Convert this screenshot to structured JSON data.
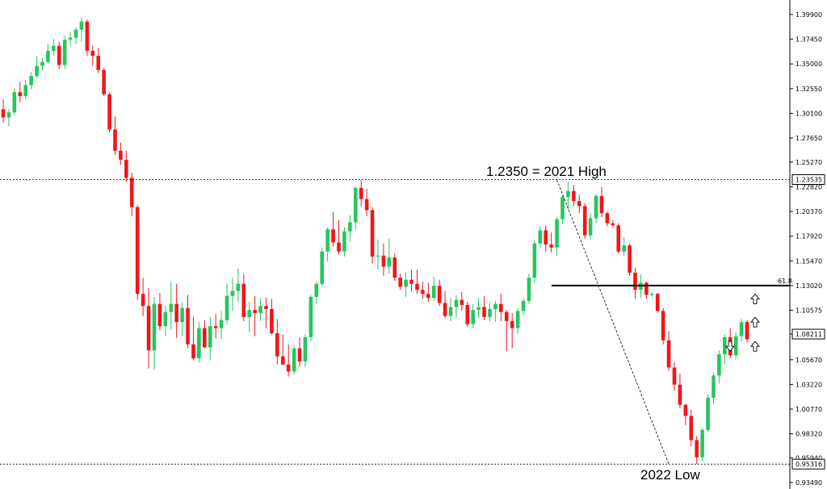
{
  "chart_data": {
    "type": "candlestick",
    "y_ticks": [
      "1.39900",
      "1.37450",
      "1.35000",
      "1.32550",
      "1.30100",
      "1.27650",
      "1.25270",
      "1.22820",
      "1.20370",
      "1.17920",
      "1.15470",
      "1.13020",
      "1.10575",
      "1.08211",
      "1.05670",
      "1.03220",
      "1.00770",
      "0.98320",
      "0.95940",
      "0.93490"
    ],
    "ylim": [
      0.9349,
      1.399
    ],
    "price_boxes": [
      {
        "label": "1.23535",
        "value": 1.23535
      },
      {
        "label": "1.08211",
        "value": 1.08211
      },
      {
        "label": "0.95316",
        "value": 0.95316
      }
    ],
    "annotations": [
      {
        "text": "1.2350 = 2021 High",
        "value": 1.235
      },
      {
        "text": "2022 Low",
        "value": 0.9532
      }
    ],
    "fib_level": {
      "label": "61.8",
      "value": 1.1302
    },
    "arrows": [
      {
        "direction": "up",
        "value": 1.117
      },
      {
        "direction": "up",
        "value": 1.094
      },
      {
        "direction": "up",
        "value": 1.07
      },
      {
        "direction": "down",
        "value": 1.07
      }
    ],
    "colors": {
      "up": "#26c65e",
      "down": "#f0161a",
      "grid": "#000000",
      "text": "#000000"
    },
    "candles": [
      [
        1.305,
        1.315,
        1.292,
        1.297
      ],
      [
        1.297,
        1.305,
        1.288,
        1.302
      ],
      [
        1.302,
        1.326,
        1.299,
        1.322
      ],
      [
        1.322,
        1.332,
        1.312,
        1.318
      ],
      [
        1.318,
        1.334,
        1.315,
        1.329
      ],
      [
        1.329,
        1.342,
        1.325,
        1.338
      ],
      [
        1.338,
        1.358,
        1.336,
        1.348
      ],
      [
        1.348,
        1.356,
        1.343,
        1.352
      ],
      [
        1.352,
        1.37,
        1.35,
        1.363
      ],
      [
        1.363,
        1.375,
        1.358,
        1.368
      ],
      [
        1.368,
        1.372,
        1.345,
        1.349
      ],
      [
        1.349,
        1.378,
        1.345,
        1.374
      ],
      [
        1.374,
        1.382,
        1.368,
        1.376
      ],
      [
        1.376,
        1.386,
        1.37,
        1.384
      ],
      [
        1.384,
        1.396,
        1.372,
        1.392
      ],
      [
        1.392,
        1.394,
        1.358,
        1.363
      ],
      [
        1.363,
        1.368,
        1.348,
        1.358
      ],
      [
        1.358,
        1.366,
        1.341,
        1.344
      ],
      [
        1.344,
        1.346,
        1.318,
        1.32
      ],
      [
        1.32,
        1.322,
        1.282,
        1.285
      ],
      [
        1.285,
        1.298,
        1.26,
        1.264
      ],
      [
        1.264,
        1.272,
        1.25,
        1.255
      ],
      [
        1.255,
        1.264,
        1.233,
        1.237
      ],
      [
        1.237,
        1.242,
        1.199,
        1.208
      ],
      [
        1.208,
        1.21,
        1.116,
        1.122
      ],
      [
        1.122,
        1.138,
        1.1,
        1.11
      ],
      [
        1.11,
        1.128,
        1.048,
        1.066
      ],
      [
        1.066,
        1.119,
        1.047,
        1.112
      ],
      [
        1.112,
        1.123,
        1.086,
        1.09
      ],
      [
        1.09,
        1.11,
        1.08,
        1.104
      ],
      [
        1.104,
        1.134,
        1.087,
        1.112
      ],
      [
        1.112,
        1.132,
        1.078,
        1.094
      ],
      [
        1.094,
        1.114,
        1.08,
        1.108
      ],
      [
        1.108,
        1.121,
        1.068,
        1.072
      ],
      [
        1.072,
        1.099,
        1.056,
        1.058
      ],
      [
        1.058,
        1.094,
        1.054,
        1.088
      ],
      [
        1.088,
        1.096,
        1.068,
        1.069
      ],
      [
        1.069,
        1.099,
        1.056,
        1.09
      ],
      [
        1.09,
        1.102,
        1.078,
        1.088
      ],
      [
        1.088,
        1.105,
        1.077,
        1.096
      ],
      [
        1.096,
        1.132,
        1.092,
        1.12
      ],
      [
        1.12,
        1.138,
        1.105,
        1.125
      ],
      [
        1.125,
        1.147,
        1.114,
        1.132
      ],
      [
        1.132,
        1.142,
        1.095,
        1.099
      ],
      [
        1.099,
        1.114,
        1.084,
        1.106
      ],
      [
        1.106,
        1.12,
        1.08,
        1.103
      ],
      [
        1.103,
        1.118,
        1.095,
        1.11
      ],
      [
        1.11,
        1.118,
        1.088,
        1.107
      ],
      [
        1.107,
        1.117,
        1.082,
        1.083
      ],
      [
        1.083,
        1.097,
        1.052,
        1.06
      ],
      [
        1.06,
        1.082,
        1.051,
        1.052
      ],
      [
        1.052,
        1.072,
        1.04,
        1.045
      ],
      [
        1.045,
        1.071,
        1.042,
        1.068
      ],
      [
        1.068,
        1.079,
        1.05,
        1.055
      ],
      [
        1.055,
        1.082,
        1.049,
        1.079
      ],
      [
        1.079,
        1.121,
        1.075,
        1.119
      ],
      [
        1.119,
        1.134,
        1.112,
        1.132
      ],
      [
        1.132,
        1.168,
        1.13,
        1.164
      ],
      [
        1.164,
        1.188,
        1.154,
        1.186
      ],
      [
        1.186,
        1.203,
        1.169,
        1.173
      ],
      [
        1.173,
        1.195,
        1.161,
        1.164
      ],
      [
        1.164,
        1.188,
        1.159,
        1.184
      ],
      [
        1.184,
        1.2,
        1.174,
        1.193
      ],
      [
        1.193,
        1.229,
        1.186,
        1.227
      ],
      [
        1.227,
        1.235,
        1.209,
        1.216
      ],
      [
        1.216,
        1.226,
        1.199,
        1.205
      ],
      [
        1.205,
        1.208,
        1.152,
        1.159
      ],
      [
        1.159,
        1.176,
        1.146,
        1.16
      ],
      [
        1.16,
        1.172,
        1.14,
        1.149
      ],
      [
        1.149,
        1.177,
        1.142,
        1.158
      ],
      [
        1.158,
        1.162,
        1.135,
        1.138
      ],
      [
        1.138,
        1.142,
        1.126,
        1.129
      ],
      [
        1.129,
        1.143,
        1.119,
        1.136
      ],
      [
        1.136,
        1.146,
        1.124,
        1.132
      ],
      [
        1.132,
        1.146,
        1.122,
        1.126
      ],
      [
        1.126,
        1.134,
        1.117,
        1.122
      ],
      [
        1.122,
        1.133,
        1.114,
        1.118
      ],
      [
        1.118,
        1.139,
        1.115,
        1.13
      ],
      [
        1.13,
        1.136,
        1.11,
        1.113
      ],
      [
        1.113,
        1.125,
        1.098,
        1.1
      ],
      [
        1.1,
        1.118,
        1.095,
        1.109
      ],
      [
        1.109,
        1.121,
        1.098,
        1.116
      ],
      [
        1.116,
        1.124,
        1.105,
        1.111
      ],
      [
        1.111,
        1.114,
        1.089,
        1.092
      ],
      [
        1.092,
        1.112,
        1.088,
        1.106
      ],
      [
        1.106,
        1.118,
        1.098,
        1.109
      ],
      [
        1.109,
        1.12,
        1.096,
        1.099
      ],
      [
        1.099,
        1.113,
        1.095,
        1.107
      ],
      [
        1.107,
        1.115,
        1.094,
        1.112
      ],
      [
        1.112,
        1.122,
        1.095,
        1.104
      ],
      [
        1.104,
        1.106,
        1.065,
        1.095
      ],
      [
        1.095,
        1.103,
        1.068,
        1.088
      ],
      [
        1.088,
        1.108,
        1.083,
        1.105
      ],
      [
        1.105,
        1.118,
        1.101,
        1.115
      ],
      [
        1.115,
        1.142,
        1.112,
        1.138
      ],
      [
        1.138,
        1.175,
        1.133,
        1.172
      ],
      [
        1.172,
        1.189,
        1.168,
        1.185
      ],
      [
        1.185,
        1.19,
        1.164,
        1.171
      ],
      [
        1.171,
        1.183,
        1.163,
        1.168
      ],
      [
        1.168,
        1.198,
        1.16,
        1.196
      ],
      [
        1.196,
        1.22,
        1.192,
        1.218
      ],
      [
        1.218,
        1.233,
        1.206,
        1.224
      ],
      [
        1.224,
        1.23,
        1.209,
        1.214
      ],
      [
        1.214,
        1.22,
        1.202,
        1.209
      ],
      [
        1.209,
        1.212,
        1.177,
        1.18
      ],
      [
        1.18,
        1.202,
        1.176,
        1.197
      ],
      [
        1.197,
        1.221,
        1.192,
        1.219
      ],
      [
        1.219,
        1.228,
        1.198,
        1.202
      ],
      [
        1.202,
        1.204,
        1.189,
        1.192
      ],
      [
        1.192,
        1.195,
        1.188,
        1.19
      ],
      [
        1.19,
        1.192,
        1.162,
        1.164
      ],
      [
        1.164,
        1.178,
        1.16,
        1.17
      ],
      [
        1.17,
        1.172,
        1.14,
        1.143
      ],
      [
        1.143,
        1.148,
        1.117,
        1.126
      ],
      [
        1.126,
        1.141,
        1.118,
        1.133
      ],
      [
        1.133,
        1.134,
        1.117,
        1.121
      ],
      [
        1.121,
        1.124,
        1.119,
        1.122
      ],
      [
        1.122,
        1.123,
        1.103,
        1.105
      ],
      [
        1.105,
        1.108,
        1.072,
        1.076
      ],
      [
        1.076,
        1.085,
        1.046,
        1.049
      ],
      [
        1.049,
        1.054,
        1.026,
        1.032
      ],
      [
        1.032,
        1.043,
        1.009,
        1.012
      ],
      [
        1.012,
        1.013,
        0.992,
        1.001
      ],
      [
        1.001,
        1.007,
        0.971,
        0.977
      ],
      [
        0.977,
        0.981,
        0.9532,
        0.96
      ],
      [
        0.96,
        0.989,
        0.956,
        0.987
      ],
      [
        0.987,
        1.022,
        0.985,
        1.019
      ],
      [
        1.019,
        1.044,
        1.012,
        1.041
      ],
      [
        1.041,
        1.066,
        1.033,
        1.062
      ],
      [
        1.062,
        1.082,
        1.052,
        1.079
      ],
      [
        1.079,
        1.088,
        1.058,
        1.061
      ],
      [
        1.061,
        1.084,
        1.057,
        1.08
      ],
      [
        1.08,
        1.097,
        1.075,
        1.094
      ],
      [
        1.094,
        1.096,
        1.074,
        1.077
      ]
    ]
  }
}
